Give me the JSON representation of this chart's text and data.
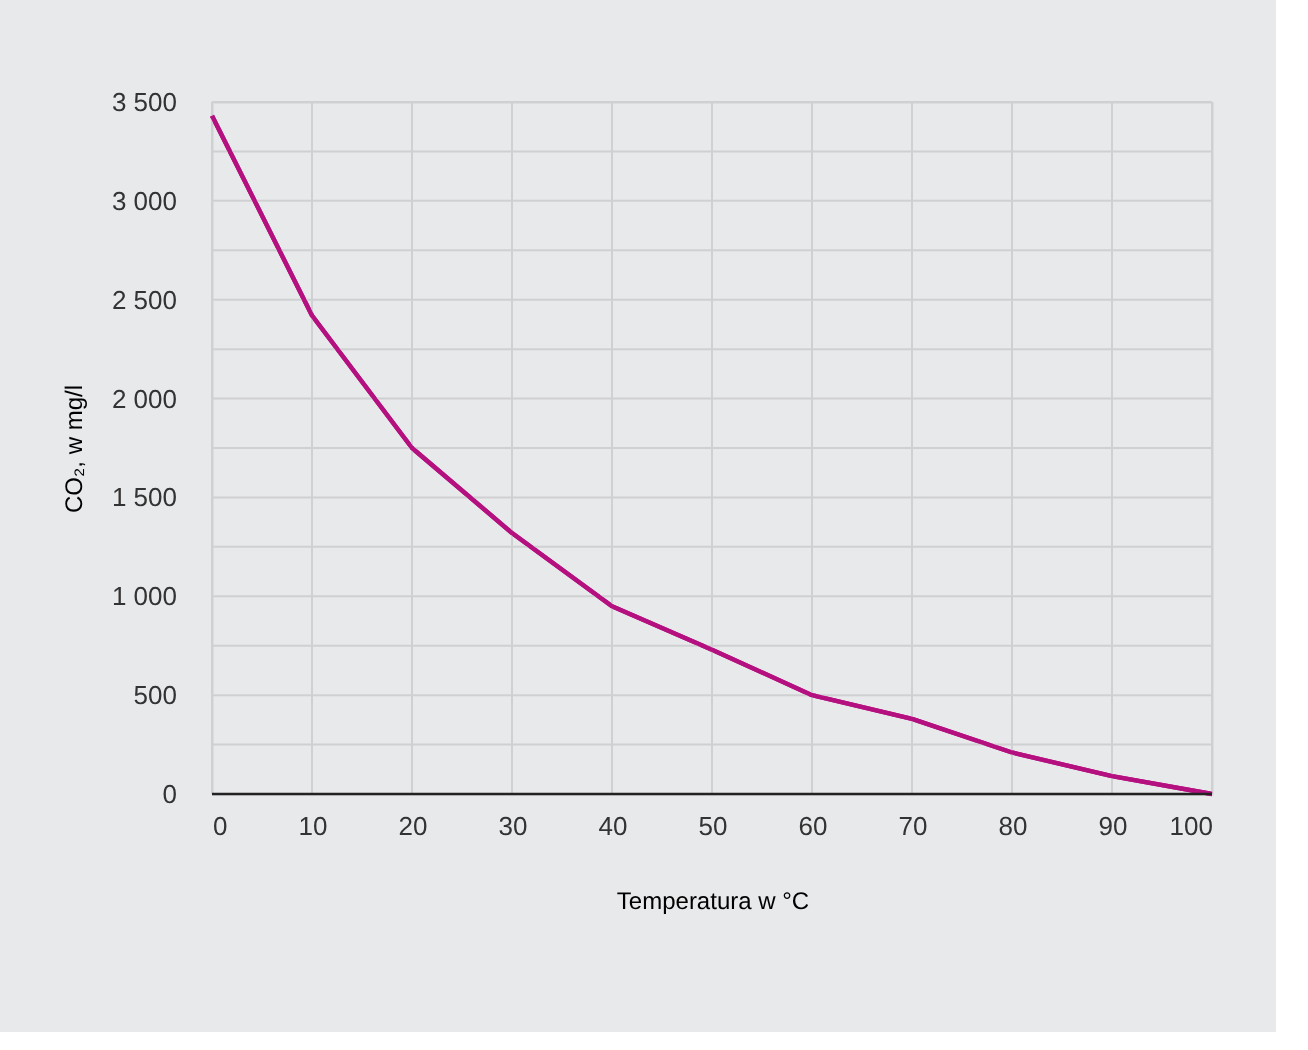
{
  "chart_data": {
    "type": "line",
    "xlabel": "Temperatura w °C",
    "ylabel": "CO₂, w mg/l",
    "x": [
      0,
      10,
      20,
      30,
      40,
      50,
      60,
      70,
      80,
      90,
      100
    ],
    "series": [
      {
        "color": "#b5107f",
        "values": [
          3430,
          2420,
          1750,
          1320,
          950,
          730,
          500,
          380,
          210,
          90,
          0
        ]
      }
    ],
    "xlim": [
      0,
      100
    ],
    "xticks": [
      0,
      10,
      20,
      30,
      40,
      50,
      60,
      70,
      80,
      90,
      100
    ],
    "ylim": [
      0,
      3500
    ],
    "yticks": [
      0,
      {
        "value": 250,
        "label": null
      },
      500,
      {
        "value": 750,
        "label": null
      },
      {
        "value": 1000,
        "label": "1 000"
      },
      {
        "value": 1250,
        "label": null
      },
      {
        "value": 1500,
        "label": "1 500"
      },
      {
        "value": 1750,
        "label": null
      },
      {
        "value": 2000,
        "label": "2 000"
      },
      {
        "value": 2250,
        "label": null
      },
      {
        "value": 2500,
        "label": "2 500"
      },
      {
        "value": 2750,
        "label": null
      },
      {
        "value": 3000,
        "label": "3 000"
      },
      {
        "value": 3250,
        "label": null
      },
      {
        "value": 3500,
        "label": "3 500"
      }
    ],
    "grid": true,
    "legend": false,
    "marker": "none",
    "line_style": "solid"
  }
}
